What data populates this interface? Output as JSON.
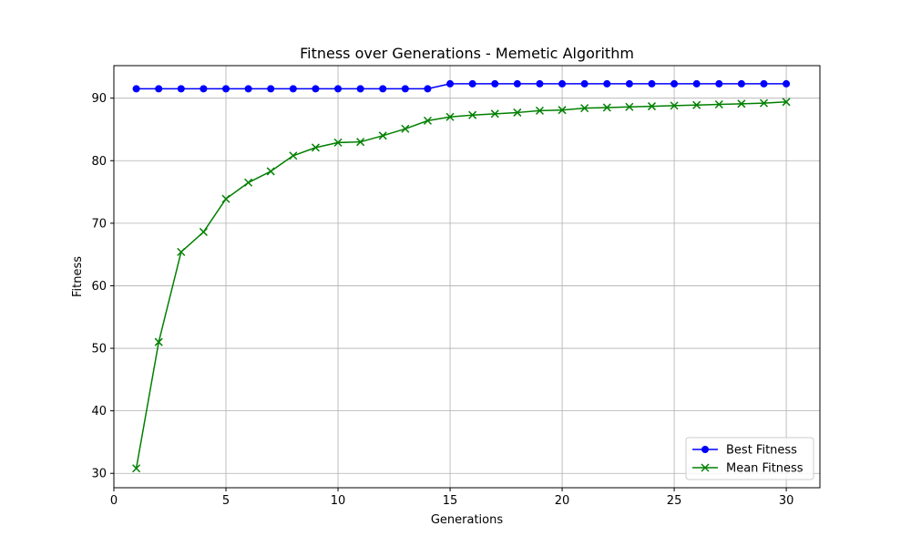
{
  "chart_data": {
    "type": "line",
    "title": "Fitness over Generations - Memetic Algorithm",
    "xlabel": "Generations",
    "ylabel": "Fitness",
    "xlim": [
      0,
      31.5
    ],
    "ylim": [
      27.7,
      95.2
    ],
    "xticks": [
      0,
      5,
      10,
      15,
      20,
      25,
      30
    ],
    "yticks": [
      30,
      40,
      50,
      60,
      70,
      80,
      90
    ],
    "grid": true,
    "legend_position": "lower-right",
    "x": [
      1,
      2,
      3,
      4,
      5,
      6,
      7,
      8,
      9,
      10,
      11,
      12,
      13,
      14,
      15,
      16,
      17,
      18,
      19,
      20,
      21,
      22,
      23,
      24,
      25,
      26,
      27,
      28,
      29,
      30
    ],
    "series": [
      {
        "name": "Best Fitness",
        "color": "#0000ff",
        "marker": "circle",
        "values": [
          91.5,
          91.5,
          91.5,
          91.5,
          91.5,
          91.5,
          91.5,
          91.5,
          91.5,
          91.5,
          91.5,
          91.5,
          91.5,
          91.5,
          92.3,
          92.3,
          92.3,
          92.3,
          92.3,
          92.3,
          92.3,
          92.3,
          92.3,
          92.3,
          92.3,
          92.3,
          92.3,
          92.3,
          92.3,
          92.3
        ]
      },
      {
        "name": "Mean Fitness",
        "color": "#008000",
        "marker": "x",
        "values": [
          30.8,
          51.0,
          65.4,
          68.6,
          73.9,
          76.5,
          78.3,
          80.8,
          82.1,
          82.9,
          83.0,
          84.0,
          85.1,
          86.4,
          87.0,
          87.3,
          87.5,
          87.7,
          88.0,
          88.1,
          88.4,
          88.5,
          88.6,
          88.7,
          88.8,
          88.9,
          89.0,
          89.1,
          89.2,
          89.4
        ]
      }
    ]
  }
}
